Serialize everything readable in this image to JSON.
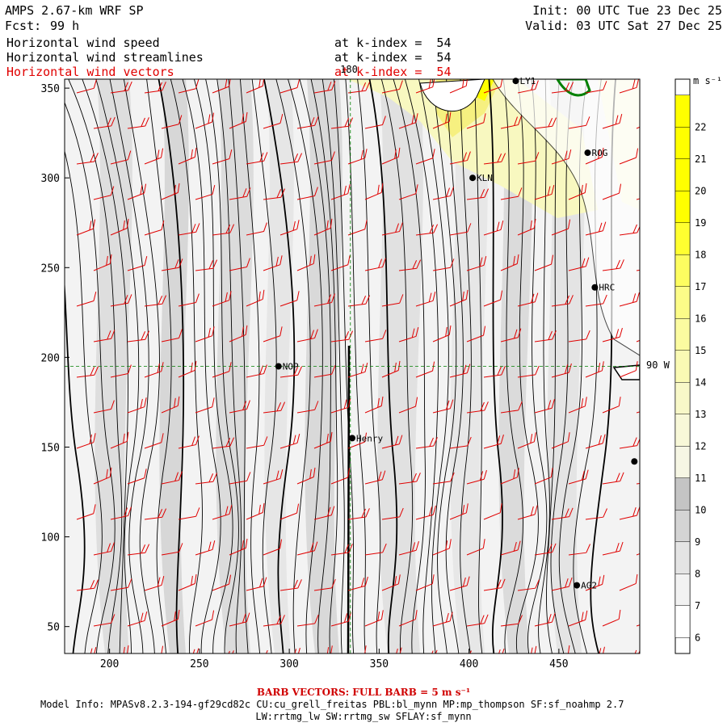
{
  "header": {
    "product": "AMPS 2.67-km WRF SP",
    "forecast_label": "Fcst:",
    "forecast_hours": "99 h",
    "init": "Init: 00 UTC Tue 23 Dec 25",
    "valid": "Valid: 03 UTC Sat 27 Dec 25"
  },
  "fields": [
    {
      "name": "Horizontal wind speed",
      "level": "at k-index =  54",
      "color": "#000000"
    },
    {
      "name": "Horizontal wind streamlines",
      "level": "at k-index =  54",
      "color": "#000000"
    },
    {
      "name": "Horizontal wind vectors",
      "level": "at k-index =  54",
      "color": "#e00000"
    }
  ],
  "map": {
    "x_ticks": [
      "200",
      "250",
      "300",
      "350",
      "400",
      "450"
    ],
    "y_ticks": [
      "50",
      "100",
      "150",
      "200",
      "250",
      "300",
      "350"
    ],
    "x_range": [
      175,
      495
    ],
    "y_range": [
      35,
      355
    ],
    "meridian_label": "180",
    "meridian_x": 334,
    "parallel_label": "90 W",
    "parallel_y": 195,
    "stations": [
      {
        "label": "NOP",
        "x": 294,
        "y": 195
      },
      {
        "label": "Henry",
        "x": 335,
        "y": 155
      },
      {
        "label": "KLN",
        "x": 402,
        "y": 300
      },
      {
        "label": "ROG",
        "x": 466,
        "y": 314
      },
      {
        "label": "HRC",
        "x": 470,
        "y": 239
      },
      {
        "label": "AG2",
        "x": 460,
        "y": 73
      },
      {
        "label": "LY1",
        "x": 426,
        "y": 354
      },
      {
        "label": "",
        "x": 492,
        "y": 142
      }
    ]
  },
  "colorbar": {
    "units": "m s⁻¹",
    "levels": [
      {
        "label": "6",
        "color": "#ffffff"
      },
      {
        "label": "7",
        "color": "#f2f2f2"
      },
      {
        "label": "8",
        "color": "#e4e4e4"
      },
      {
        "label": "9",
        "color": "#d4d4d4"
      },
      {
        "label": "10",
        "color": "#c4c4c4"
      },
      {
        "label": "11",
        "color": "#f6f6e4"
      },
      {
        "label": "12",
        "color": "#f8f8d8"
      },
      {
        "label": "13",
        "color": "#f8f8c8"
      },
      {
        "label": "14",
        "color": "#fafab4"
      },
      {
        "label": "15",
        "color": "#fbfba0"
      },
      {
        "label": "16",
        "color": "#fcfc88"
      },
      {
        "label": "17",
        "color": "#fdfd60"
      },
      {
        "label": "18",
        "color": "#ffff30"
      },
      {
        "label": "19",
        "color": "#ffff00"
      },
      {
        "label": "20",
        "color": "#ffff00"
      },
      {
        "label": "21",
        "color": "#ffff00"
      },
      {
        "label": "22",
        "color": "#ffff00"
      }
    ]
  },
  "footer": {
    "barb_note": "BARB VECTORS: FULL BARB = 5 m s⁻¹",
    "model_info": "Model Info: MPASv8.2.3-194-gf29cd82c CU:cu_grell_freitas PBL:bl_mynn MP:mp_thompson SF:sf_noahmp 2.7",
    "model_info2": "LW:rrtmg_lw SW:rrtmg_sw SFLAY:sf_mynn"
  },
  "colors": {
    "streamline": "#000000",
    "barb": "#e00000",
    "gridline": "#008000",
    "coast": "#000000",
    "grounding": "#008000"
  }
}
